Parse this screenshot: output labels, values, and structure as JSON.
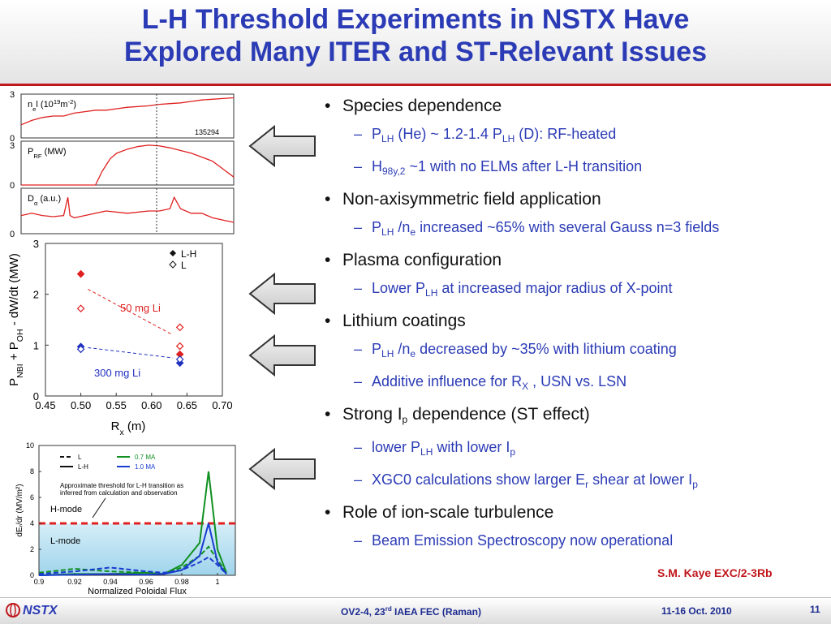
{
  "title": {
    "line1": "L-H Threshold Experiments in NSTX Have",
    "line2": "Explored Many ITER and ST-Relevant Issues"
  },
  "colors": {
    "title_blue": "#2b3bb5",
    "accent_red": "#c0161c"
  },
  "bullets": [
    {
      "text": "Species dependence",
      "subs": [
        {
          "parts": [
            [
              "P",
              ""
            ],
            [
              "LH",
              "sub"
            ],
            [
              " (He) ~ 1.2-1.4 P",
              ""
            ],
            [
              "LH",
              "sub"
            ],
            [
              " (D): RF-heated",
              ""
            ]
          ]
        },
        {
          "parts": [
            [
              "H",
              ""
            ],
            [
              "98y,2",
              "sub"
            ],
            [
              " ~1 with no ELMs after L-H transition",
              ""
            ]
          ]
        }
      ]
    },
    {
      "text": "Non-axisymmetric field application",
      "subs": [
        {
          "parts": [
            [
              "P",
              ""
            ],
            [
              "LH",
              "sub"
            ],
            [
              " /n",
              ""
            ],
            [
              "e",
              "sub"
            ],
            [
              " increased ~65% with several Gauss n=3 fields",
              ""
            ]
          ]
        }
      ]
    },
    {
      "text": "Plasma configuration",
      "subs": [
        {
          "parts": [
            [
              "Lower P",
              ""
            ],
            [
              "LH",
              "sub"
            ],
            [
              " at increased major radius of X-point",
              ""
            ]
          ]
        }
      ]
    },
    {
      "text": "Lithium coatings",
      "subs": [
        {
          "parts": [
            [
              "P",
              ""
            ],
            [
              "LH",
              "sub"
            ],
            [
              " /n",
              ""
            ],
            [
              "e",
              "sub"
            ],
            [
              "  decreased by ~35% with lithium coating",
              ""
            ]
          ]
        },
        {
          "parts": [
            [
              "Additive influence for R",
              ""
            ],
            [
              "X",
              "sub"
            ],
            [
              " , USN vs. LSN",
              ""
            ]
          ]
        }
      ]
    },
    {
      "parts": [
        [
          "Strong I",
          ""
        ],
        [
          "p",
          "sub"
        ],
        [
          " dependence (ST effect)",
          ""
        ]
      ],
      "subs": [
        {
          "parts": [
            [
              "lower P",
              ""
            ],
            [
              "LH",
              "sub"
            ],
            [
              " with lower I",
              ""
            ],
            [
              "p",
              "sub"
            ]
          ]
        },
        {
          "parts": [
            [
              "XGC0 calculations show larger E",
              ""
            ],
            [
              "r",
              "sub"
            ],
            [
              "  shear at lower I",
              ""
            ],
            [
              "p",
              "sub"
            ]
          ]
        }
      ]
    },
    {
      "text": "Role of ion-scale turbulence",
      "subs": [
        {
          "parts": [
            [
              "Beam Emission Spectroscopy now operational",
              ""
            ]
          ]
        }
      ]
    }
  ],
  "reference": "S.M. Kaye EXC/2-3Rb",
  "footer": {
    "logo": "NSTX",
    "conference_pre": "OV2-4, 23",
    "conference_sup": "rd",
    "conference_post": " IAEA FEC (Raman)",
    "date": "11-16 Oct. 2010",
    "page": "11"
  },
  "chart_data": [
    {
      "type": "line",
      "panel": "timetraces-top",
      "ylabels": [
        [
          "n",
          ""
        ],
        [
          "e",
          "sub"
        ],
        [
          "l (10",
          ""
        ],
        [
          "19",
          "sup"
        ],
        [
          "m",
          ""
        ],
        [
          "-2",
          "sup"
        ],
        [
          ")",
          ""
        ]
      ],
      "yticks": [
        0,
        3
      ],
      "annotation": "135294",
      "series": [
        {
          "name": "nel",
          "x": [
            0,
            0.05,
            0.1,
            0.15,
            0.2,
            0.25,
            0.3,
            0.35,
            0.4,
            0.45,
            0.5,
            0.55,
            0.6,
            0.65,
            0.7,
            0.75,
            0.8,
            0.85,
            0.9,
            0.95,
            1.0
          ],
          "y": [
            0.9,
            1.2,
            1.4,
            1.5,
            1.5,
            1.7,
            1.8,
            1.9,
            1.9,
            2.0,
            2.1,
            2.15,
            2.2,
            2.3,
            2.35,
            2.4,
            2.5,
            2.6,
            2.65,
            2.7,
            2.75
          ]
        }
      ]
    },
    {
      "type": "line",
      "panel": "timetraces-mid",
      "ylabels": [
        [
          "P",
          ""
        ],
        [
          "RF",
          "sub"
        ],
        [
          " (MW)",
          ""
        ]
      ],
      "yticks": [
        0,
        3
      ],
      "series": [
        {
          "name": "PRF",
          "x": [
            0,
            0.35,
            0.38,
            0.42,
            0.45,
            0.5,
            0.55,
            0.6,
            0.65,
            0.7,
            0.75,
            0.8,
            0.85,
            0.9,
            0.95,
            1.0
          ],
          "y": [
            0,
            0,
            1.0,
            2.0,
            2.4,
            2.7,
            2.9,
            3.0,
            2.95,
            2.8,
            2.6,
            2.4,
            2.1,
            1.8,
            1.2,
            0.6
          ]
        }
      ]
    },
    {
      "type": "line",
      "panel": "timetraces-bot",
      "ylabels": [
        [
          "D",
          ""
        ],
        [
          "α",
          "sub"
        ],
        [
          " (a.u.)",
          ""
        ]
      ],
      "yticks": [
        0
      ],
      "series": [
        {
          "name": "Dalpha",
          "x": [
            0,
            0.05,
            0.1,
            0.15,
            0.2,
            0.22,
            0.23,
            0.25,
            0.3,
            0.4,
            0.5,
            0.6,
            0.65,
            0.7,
            0.72,
            0.75,
            0.8,
            0.85,
            0.9,
            0.95,
            1.0
          ],
          "y": [
            0.8,
            0.9,
            0.8,
            0.75,
            0.8,
            1.6,
            0.8,
            0.7,
            0.8,
            1.0,
            0.9,
            1.0,
            1.0,
            1.1,
            1.6,
            1.1,
            0.9,
            0.9,
            0.7,
            0.6,
            0.5
          ]
        }
      ]
    },
    {
      "type": "scatter",
      "panel": "threshold-vs-rx",
      "xlabel": "R",
      "xlabel_sub": "x",
      "xlabel_post": " (m)",
      "ylabel": [
        [
          "P",
          ""
        ],
        [
          "NBI",
          "sub"
        ],
        [
          " + P",
          ""
        ],
        [
          "OH",
          "sub"
        ],
        [
          " - dW/dt  (MW)",
          ""
        ]
      ],
      "xlim": [
        0.45,
        0.7
      ],
      "ylim": [
        0,
        3
      ],
      "xticks": [
        "0.45",
        "0.50",
        "0.55",
        "0.60",
        "0.65",
        "0.70"
      ],
      "yticks": [
        "0",
        "1",
        "2",
        "3"
      ],
      "legend": [
        "L-H",
        "L"
      ],
      "series": [
        {
          "name": "L-H 50 mg Li",
          "color": "#e02020",
          "filled": true,
          "x": [
            0.5,
            0.64
          ],
          "y": [
            2.4,
            0.82
          ]
        },
        {
          "name": "L 50 mg Li",
          "color": "#e02020",
          "filled": false,
          "x": [
            0.5,
            0.64,
            0.64
          ],
          "y": [
            1.72,
            1.35,
            0.98
          ]
        },
        {
          "name": "L-H 300 mg Li",
          "color": "#2030c0",
          "filled": true,
          "x": [
            0.5,
            0.64
          ],
          "y": [
            0.97,
            0.65
          ]
        },
        {
          "name": "L 300 mg Li",
          "color": "#2030c0",
          "filled": false,
          "x": [
            0.5,
            0.64
          ],
          "y": [
            0.92,
            0.72
          ]
        }
      ],
      "fits": [
        {
          "label": "50 mg Li",
          "color": "#e02020",
          "x": [
            0.51,
            0.63
          ],
          "y": [
            2.1,
            1.2
          ]
        },
        {
          "label": "300 mg Li",
          "color": "#2030c0",
          "x": [
            0.51,
            0.63
          ],
          "y": [
            0.95,
            0.75
          ]
        }
      ]
    },
    {
      "type": "line",
      "panel": "er-shear",
      "xlabel": "Normalized Poloidal Flux",
      "ylabel": "dEᵣ/dr (MV/m²)",
      "xlim": [
        0.9,
        1.01
      ],
      "ylim": [
        0,
        10
      ],
      "xticks": [
        "0.9",
        "0.92",
        "0.94",
        "0.96",
        "0.98",
        "1"
      ],
      "yticks": [
        "0",
        "2",
        "4",
        "6",
        "8",
        "10"
      ],
      "legend": [
        "L",
        "L-H",
        "0.7 MA",
        "1.0 MA"
      ],
      "threshold": 4,
      "threshold_label": "Approximate threshold for L-H transition as inferred from calculation and observation",
      "region_labels": [
        "H-mode",
        "L-mode"
      ],
      "series": [
        {
          "name": "0.7 MA L-H",
          "color": "#109020",
          "dash": false,
          "x": [
            0.9,
            0.92,
            0.94,
            0.96,
            0.97,
            0.98,
            0.99,
            0.995,
            1.0,
            1.005
          ],
          "y": [
            0,
            0.1,
            0.1,
            0.2,
            0.1,
            0.8,
            2.5,
            8.0,
            2.0,
            0.2
          ]
        },
        {
          "name": "0.7 MA L",
          "color": "#109020",
          "dash": true,
          "x": [
            0.9,
            0.92,
            0.94,
            0.96,
            0.97,
            0.98,
            0.99,
            0.995,
            1.0,
            1.005
          ],
          "y": [
            0.2,
            0.5,
            0.3,
            0.2,
            0.1,
            0.6,
            1.5,
            2.2,
            1.2,
            0.2
          ]
        },
        {
          "name": "1.0 MA L-H",
          "color": "#1a3cd0",
          "dash": false,
          "x": [
            0.9,
            0.92,
            0.94,
            0.96,
            0.97,
            0.98,
            0.99,
            0.995,
            1.0,
            1.005
          ],
          "y": [
            0,
            0.05,
            0.1,
            0.05,
            0.1,
            0.4,
            1.5,
            4.0,
            1.0,
            0.1
          ]
        },
        {
          "name": "1.0 MA L",
          "color": "#1a3cd0",
          "dash": true,
          "x": [
            0.9,
            0.92,
            0.94,
            0.96,
            0.97,
            0.98,
            0.99,
            0.995,
            1.0,
            1.005
          ],
          "y": [
            0.1,
            0.3,
            0.6,
            0.3,
            0.2,
            0.4,
            1.0,
            1.4,
            0.8,
            0.1
          ]
        }
      ]
    }
  ]
}
